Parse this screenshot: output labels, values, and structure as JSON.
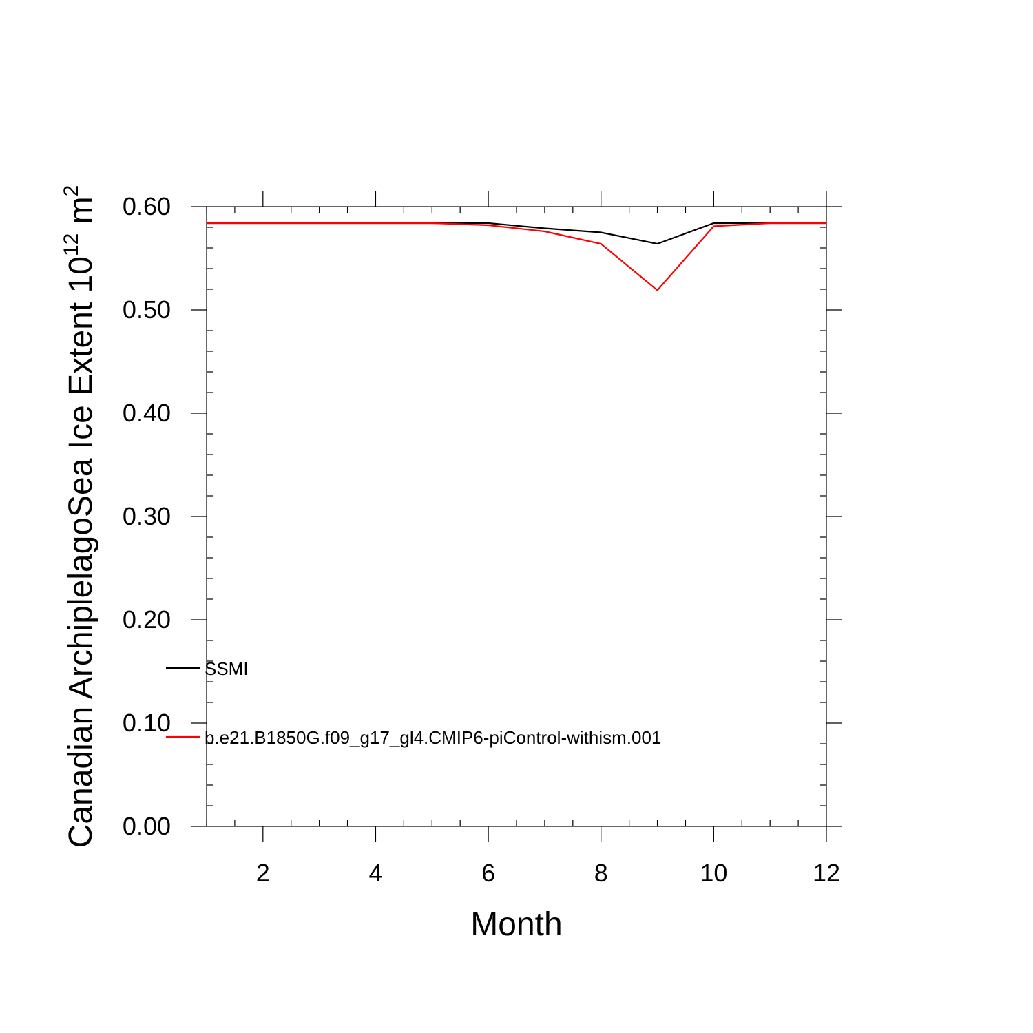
{
  "chart_data": {
    "type": "line",
    "xlabel": "Month",
    "ylabel": {
      "text": "Canadian ArchiplelagoSea Ice Extent 10",
      "exponent": "12",
      "unit": " m",
      "unit_exponent": "2"
    },
    "xlim": [
      1,
      12
    ],
    "ylim": [
      0,
      0.6
    ],
    "x_ticks": [
      2,
      4,
      6,
      8,
      10,
      12
    ],
    "x_tick_labels": [
      "2",
      "4",
      "6",
      "8",
      "10",
      "12"
    ],
    "y_ticks": [
      0,
      0.1,
      0.2,
      0.3,
      0.4,
      0.5,
      0.6
    ],
    "y_tick_labels": [
      "0.00",
      "0.10",
      "0.20",
      "0.30",
      "0.40",
      "0.50",
      "0.60"
    ],
    "grid": false,
    "legend_position": "lower-left inside",
    "x": [
      1,
      2,
      3,
      4,
      5,
      6,
      7,
      8,
      9,
      10,
      11,
      12
    ],
    "series": [
      {
        "name": "SSMI",
        "color": "#000000",
        "values": [
          0.584,
          0.584,
          0.584,
          0.584,
          0.584,
          0.584,
          0.579,
          0.575,
          0.564,
          0.584,
          0.584,
          0.584
        ]
      },
      {
        "name": "b.e21.B1850G.f09_g17_gl4.CMIP6-piControl-withism.001",
        "color": "#ff0000",
        "values": [
          0.584,
          0.584,
          0.584,
          0.584,
          0.584,
          0.582,
          0.576,
          0.564,
          0.519,
          0.581,
          0.584,
          0.584
        ]
      }
    ]
  }
}
